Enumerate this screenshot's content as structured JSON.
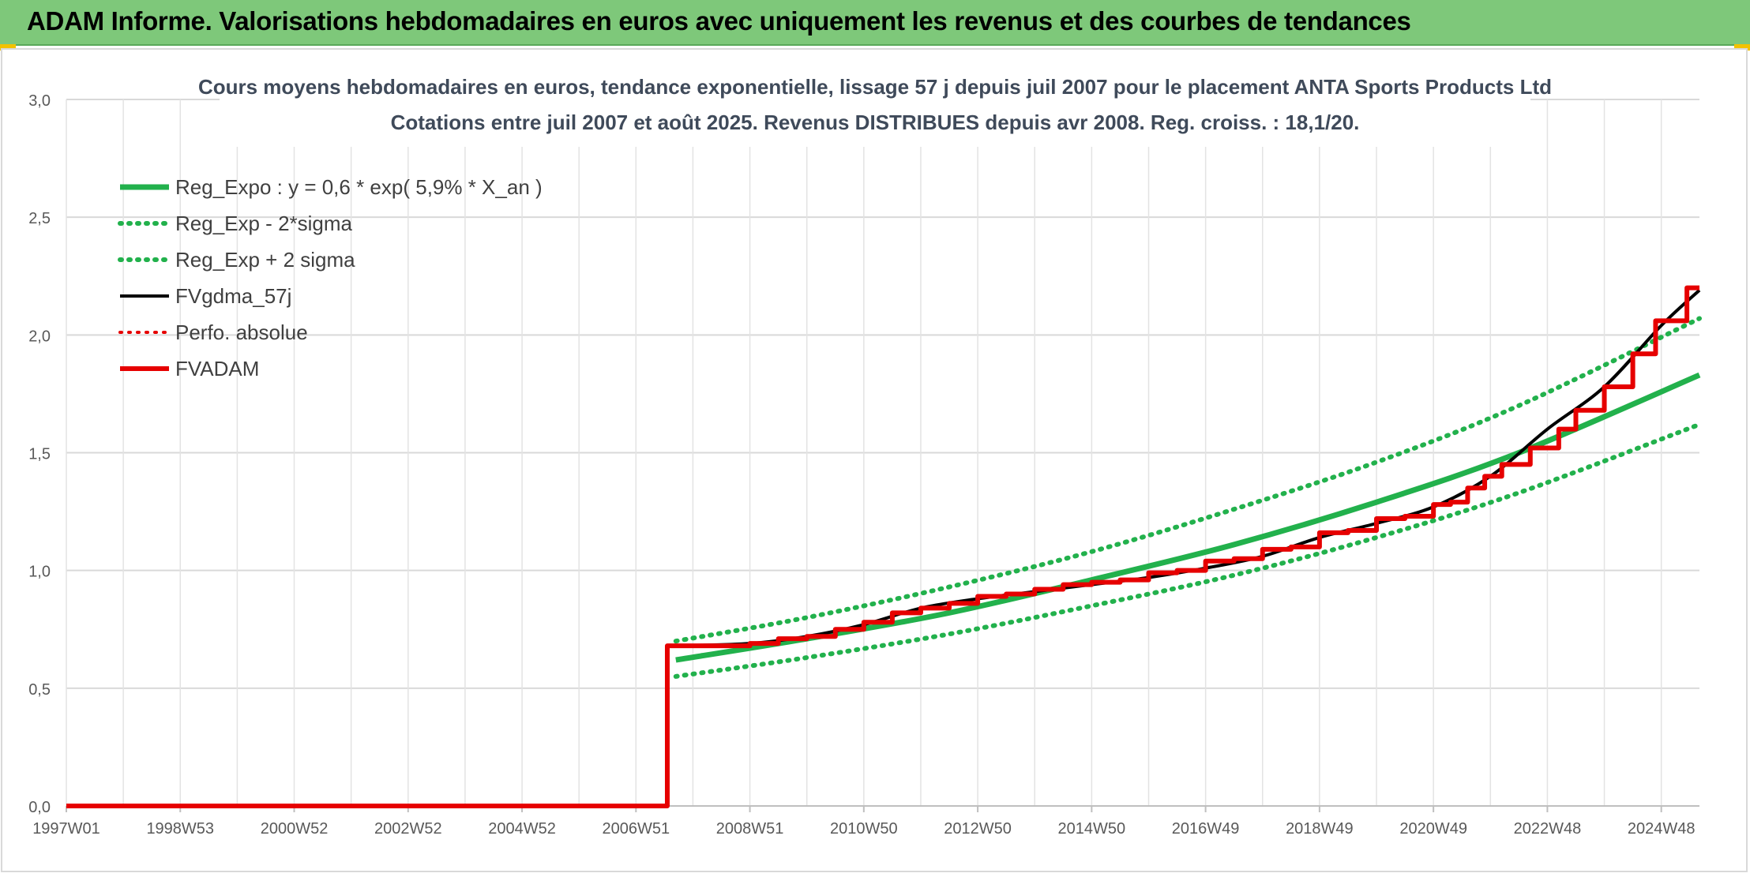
{
  "banner": {
    "title": "ADAM Informe. Valorisations hebdomadaires en euros avec uniquement les revenus et des courbes de tendances",
    "background": "#7ec87a"
  },
  "chart_data": {
    "type": "line",
    "title": "Cours moyens hebdomadaires en euros, tendance exponentielle, lissage 57 j depuis juil 2007 pour le placement ANTA Sports Products Ltd",
    "subtitle": "Cotations entre juil 2007 et août 2025. Revenus DISTRIBUES depuis avr 2008. Reg. croiss. : 18,1/20.",
    "xlabel": "",
    "ylabel": "",
    "x_range": [
      1997.0,
      2025.67
    ],
    "ylim": [
      0,
      3
    ],
    "y_ticks": [
      "0,0",
      "0,5",
      "1,0",
      "1,5",
      "2,0",
      "2,5",
      "3,0"
    ],
    "x_ticks": [
      {
        "label": "1997W01",
        "x": 1997.0
      },
      {
        "label": "1998W53",
        "x": 1999.0
      },
      {
        "label": "2000W52",
        "x": 2001.0
      },
      {
        "label": "2002W52",
        "x": 2003.0
      },
      {
        "label": "2004W52",
        "x": 2005.0
      },
      {
        "label": "2006W51",
        "x": 2007.0
      },
      {
        "label": "2008W51",
        "x": 2009.0
      },
      {
        "label": "2010W50",
        "x": 2011.0
      },
      {
        "label": "2012W50",
        "x": 2013.0
      },
      {
        "label": "2014W50",
        "x": 2015.0
      },
      {
        "label": "2016W49",
        "x": 2017.0
      },
      {
        "label": "2018W49",
        "x": 2019.0
      },
      {
        "label": "2020W49",
        "x": 2021.0
      },
      {
        "label": "2022W48",
        "x": 2023.0
      },
      {
        "label": "2024W48",
        "x": 2025.0
      }
    ],
    "grid": true,
    "legend_position": "top-left",
    "series": [
      {
        "name": "Reg_Expo : y = 0,6 * exp( 5,9% *  X_an )",
        "color": "#22b14c",
        "style": "solid",
        "width": 7,
        "x": [
          2007.7,
          2010.0,
          2012.5,
          2015.0,
          2017.5,
          2020.0,
          2022.5,
          2025.67
        ],
        "y": [
          0.62,
          0.71,
          0.82,
          0.96,
          1.11,
          1.29,
          1.5,
          1.83
        ]
      },
      {
        "name": "Reg_Exp - 2*sigma",
        "color": "#22b14c",
        "style": "dotted",
        "width": 6,
        "x": [
          2007.7,
          2010.0,
          2012.5,
          2015.0,
          2017.5,
          2020.0,
          2022.5,
          2025.67
        ],
        "y": [
          0.55,
          0.63,
          0.73,
          0.85,
          0.98,
          1.14,
          1.33,
          1.62
        ]
      },
      {
        "name": "Reg_Exp + 2 sigma",
        "color": "#22b14c",
        "style": "dotted",
        "width": 6,
        "x": [
          2007.7,
          2010.0,
          2012.5,
          2015.0,
          2017.5,
          2020.0,
          2022.5,
          2025.67
        ],
        "y": [
          0.7,
          0.8,
          0.93,
          1.08,
          1.26,
          1.46,
          1.7,
          2.07
        ]
      },
      {
        "name": "FVgdma_57j",
        "color": "#000000",
        "style": "solid",
        "width": 4,
        "x": [
          2007.7,
          2009.0,
          2010.0,
          2011.0,
          2012.0,
          2013.0,
          2014.0,
          2015.0,
          2016.0,
          2017.0,
          2018.0,
          2019.0,
          2020.0,
          2021.0,
          2022.0,
          2023.0,
          2024.0,
          2025.0,
          2025.67
        ],
        "y": [
          0.68,
          0.69,
          0.72,
          0.77,
          0.84,
          0.88,
          0.91,
          0.94,
          0.97,
          1.01,
          1.06,
          1.14,
          1.2,
          1.27,
          1.4,
          1.6,
          1.78,
          2.04,
          2.19
        ]
      },
      {
        "name": "Perfo. absolue",
        "color": "#e60000",
        "style": "dotted",
        "width": 4,
        "x": [],
        "y": []
      },
      {
        "name": "FVADAM",
        "color": "#e60000",
        "style": "step",
        "width": 6,
        "x": [
          1997.0,
          2007.55,
          2007.55,
          2008.2,
          2009.0,
          2009.5,
          2010.0,
          2010.5,
          2011.0,
          2011.5,
          2012.0,
          2012.5,
          2013.0,
          2013.5,
          2014.0,
          2014.5,
          2015.0,
          2015.5,
          2016.0,
          2016.5,
          2017.0,
          2017.5,
          2018.0,
          2018.5,
          2019.0,
          2019.5,
          2020.0,
          2020.5,
          2021.0,
          2021.3,
          2021.6,
          2021.9,
          2022.2,
          2022.7,
          2023.2,
          2023.5,
          2024.0,
          2024.5,
          2024.9,
          2025.45
        ],
        "y": [
          0.0,
          0.0,
          0.68,
          0.68,
          0.69,
          0.71,
          0.72,
          0.75,
          0.78,
          0.82,
          0.84,
          0.86,
          0.89,
          0.9,
          0.92,
          0.94,
          0.95,
          0.96,
          0.99,
          1.0,
          1.04,
          1.05,
          1.09,
          1.1,
          1.16,
          1.17,
          1.22,
          1.23,
          1.28,
          1.29,
          1.35,
          1.4,
          1.45,
          1.52,
          1.6,
          1.68,
          1.78,
          1.92,
          2.06,
          2.2
        ]
      }
    ]
  }
}
